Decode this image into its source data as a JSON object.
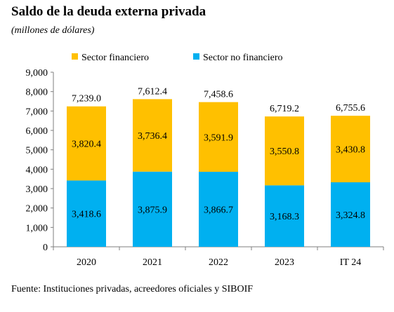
{
  "title": "Saldo de la deuda externa privada",
  "subtitle": "(millones de dólares)",
  "source": "Fuente: Instituciones privadas, acreedores oficiales y SIBOIF",
  "chart_data": {
    "type": "bar",
    "stacked": true,
    "categories": [
      "2020",
      "2021",
      "2022",
      "2023",
      "IT 24"
    ],
    "series": [
      {
        "name": "Sector no financiero",
        "values": [
          3418.6,
          3875.9,
          3866.7,
          3168.3,
          3324.8
        ],
        "labels": [
          "3,418.6",
          "3,875.9",
          "3,866.7",
          "3,168.3",
          "3,324.8"
        ],
        "color": "#00b0f0"
      },
      {
        "name": "Sector financiero",
        "values": [
          3820.4,
          3736.4,
          3591.9,
          3550.8,
          3430.8
        ],
        "labels": [
          "3,820.4",
          "3,736.4",
          "3,591.9",
          "3,550.8",
          "3,430.8"
        ],
        "color": "#ffc000"
      }
    ],
    "totals": [
      7239.0,
      7612.4,
      7458.6,
      6719.2,
      6755.6
    ],
    "total_labels": [
      "7,239.0",
      "7,612.4",
      "7,458.6",
      "6,719.2",
      "6,755.6"
    ],
    "ylim": [
      0,
      9000
    ],
    "yticks": [
      0,
      1000,
      2000,
      3000,
      4000,
      5000,
      6000,
      7000,
      8000,
      9000
    ],
    "ytick_labels": [
      "0",
      "1,000",
      "2,000",
      "3,000",
      "4,000",
      "5,000",
      "6,000",
      "7,000",
      "8,000",
      "9,000"
    ],
    "legend_order": [
      "Sector financiero",
      "Sector no financiero"
    ],
    "legend_position": "top",
    "grid": false
  }
}
